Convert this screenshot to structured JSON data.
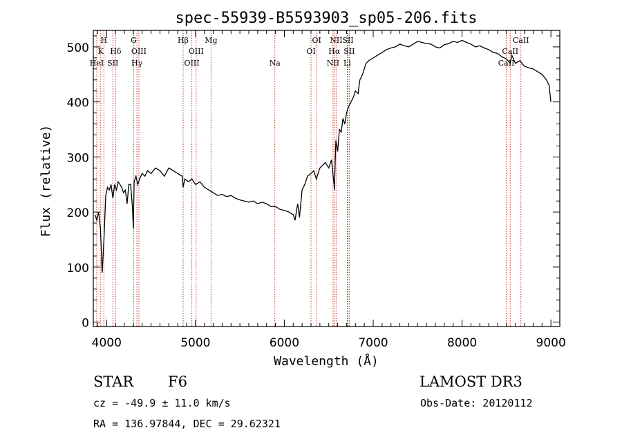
{
  "chart_data": {
    "type": "line",
    "title": "spec-55939-B5593903_sp05-206.fits",
    "xlabel": "Wavelength (Å)",
    "ylabel": "Flux (relative)",
    "xlim": [
      3850,
      9100
    ],
    "ylim": [
      -8,
      530
    ],
    "xticks": [
      4000,
      5000,
      6000,
      7000,
      8000,
      9000
    ],
    "yticks": [
      0,
      100,
      200,
      300,
      400,
      500
    ],
    "series": [
      {
        "name": "flux",
        "x": [
          3870,
          3890,
          3910,
          3930,
          3950,
          3970,
          3990,
          4010,
          4030,
          4050,
          4070,
          4090,
          4110,
          4130,
          4150,
          4170,
          4190,
          4210,
          4230,
          4250,
          4270,
          4290,
          4300,
          4310,
          4330,
          4350,
          4370,
          4400,
          4430,
          4460,
          4500,
          4550,
          4600,
          4650,
          4700,
          4750,
          4800,
          4850,
          4861,
          4880,
          4920,
          4960,
          5000,
          5050,
          5100,
          5150,
          5200,
          5250,
          5300,
          5350,
          5400,
          5450,
          5500,
          5550,
          5600,
          5650,
          5700,
          5750,
          5800,
          5850,
          5900,
          5950,
          6000,
          6050,
          6100,
          6120,
          6150,
          6170,
          6200,
          6230,
          6260,
          6300,
          6330,
          6360,
          6400,
          6430,
          6460,
          6500,
          6530,
          6560,
          6563,
          6580,
          6600,
          6620,
          6640,
          6660,
          6680,
          6700,
          6720,
          6750,
          6780,
          6800,
          6830,
          6850,
          6880,
          6900,
          6920,
          6950,
          6980,
          7000,
          7050,
          7100,
          7150,
          7200,
          7250,
          7300,
          7350,
          7400,
          7450,
          7500,
          7550,
          7600,
          7650,
          7700,
          7750,
          7800,
          7850,
          7900,
          7950,
          8000,
          8050,
          8100,
          8150,
          8200,
          8250,
          8300,
          8350,
          8400,
          8450,
          8500,
          8542,
          8560,
          8600,
          8650,
          8700,
          8750,
          8800,
          8850,
          8900,
          8950,
          8980,
          9000
        ],
        "y": [
          195,
          185,
          200,
          170,
          90,
          150,
          230,
          245,
          240,
          250,
          225,
          250,
          240,
          255,
          250,
          245,
          235,
          240,
          215,
          250,
          250,
          210,
          170,
          255,
          265,
          250,
          260,
          270,
          265,
          275,
          270,
          280,
          275,
          265,
          280,
          275,
          270,
          265,
          245,
          260,
          255,
          260,
          250,
          255,
          245,
          240,
          235,
          230,
          232,
          228,
          230,
          225,
          222,
          220,
          218,
          220,
          215,
          218,
          215,
          210,
          210,
          205,
          203,
          200,
          195,
          185,
          215,
          190,
          240,
          250,
          265,
          270,
          275,
          260,
          280,
          285,
          290,
          280,
          295,
          250,
          240,
          330,
          310,
          350,
          345,
          370,
          360,
          380,
          390,
          400,
          410,
          420,
          415,
          440,
          450,
          460,
          470,
          475,
          478,
          480,
          485,
          490,
          495,
          498,
          500,
          505,
          502,
          500,
          505,
          510,
          508,
          506,
          505,
          500,
          498,
          504,
          506,
          510,
          508,
          512,
          508,
          505,
          500,
          502,
          498,
          495,
          490,
          488,
          482,
          478,
          470,
          485,
          470,
          475,
          465,
          462,
          460,
          455,
          450,
          440,
          430,
          400
        ]
      }
    ],
    "spectral_lines": [
      {
        "name": "K",
        "x": 3934,
        "row": 2
      },
      {
        "name": "H",
        "x": 3969,
        "row": 1
      },
      {
        "name": "HeI",
        "x": 3889,
        "row": 3
      },
      {
        "name": "SII",
        "x": 4070,
        "row": 3
      },
      {
        "name": "Hδ",
        "x": 4102,
        "row": 2
      },
      {
        "name": "G",
        "x": 4305,
        "row": 1
      },
      {
        "name": "Hγ",
        "x": 4341,
        "row": 3
      },
      {
        "name": "OIII",
        "x": 4363,
        "row": 2
      },
      {
        "name": "Hβ",
        "x": 4861,
        "row": 1
      },
      {
        "name": "OIII",
        "x": 4959,
        "row": 3
      },
      {
        "name": "OIII",
        "x": 5007,
        "row": 2
      },
      {
        "name": "Mg",
        "x": 5175,
        "row": 1
      },
      {
        "name": "Na",
        "x": 5893,
        "row": 3
      },
      {
        "name": "OI",
        "x": 6300,
        "row": 2
      },
      {
        "name": "OI",
        "x": 6364,
        "row": 1
      },
      {
        "name": "NII",
        "x": 6548,
        "row": 3
      },
      {
        "name": "Hα",
        "x": 6563,
        "row": 2
      },
      {
        "name": "NII",
        "x": 6583,
        "row": 1
      },
      {
        "name": "SII",
        "x": 6716,
        "row": 1
      },
      {
        "name": "Li",
        "x": 6708,
        "row": 3
      },
      {
        "name": "SII",
        "x": 6731,
        "row": 2
      },
      {
        "name": "CaII",
        "x": 8498,
        "row": 3
      },
      {
        "name": "CaII",
        "x": 8542,
        "row": 2
      },
      {
        "name": "CaII",
        "x": 8662,
        "row": 1
      }
    ]
  },
  "info": {
    "class": "STAR",
    "subclass": "F6",
    "survey": "LAMOST DR3",
    "redshift": "cz = -49.9 ± 11.0 km/s",
    "obs_date": "Obs-Date: 20120112",
    "coords": "RA = 136.97844, DEC =  29.62321"
  }
}
